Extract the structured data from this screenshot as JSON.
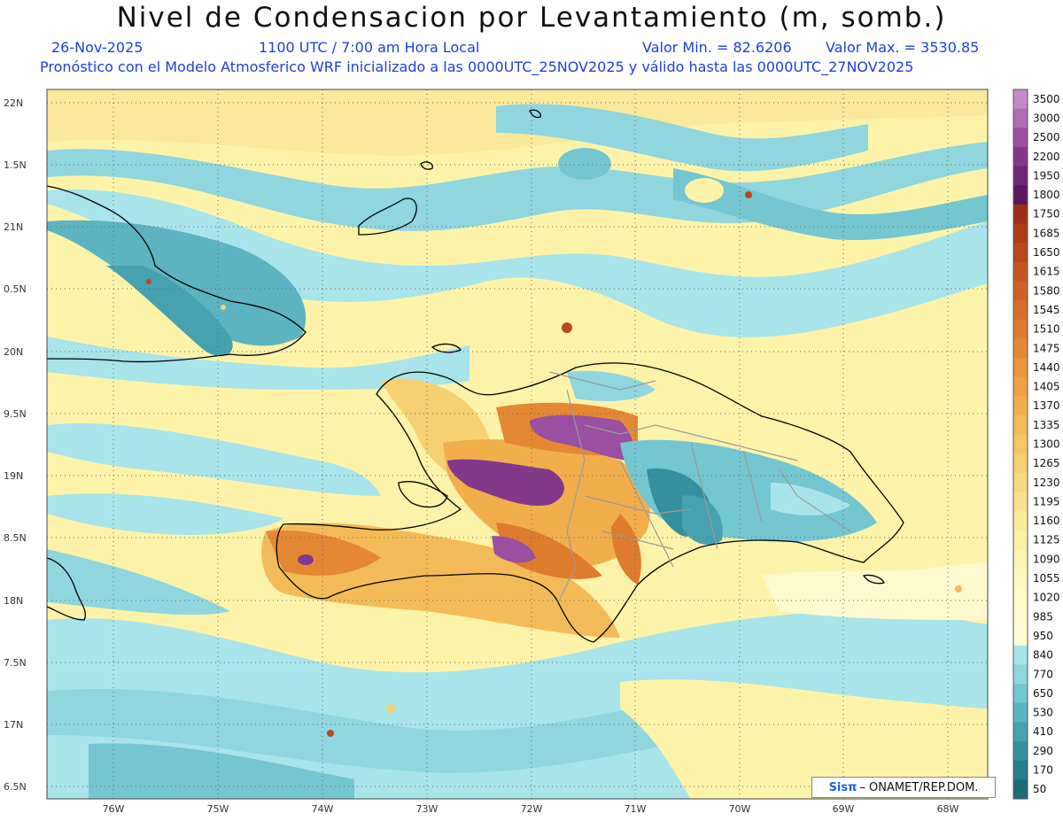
{
  "title": "Nivel de Condensacion por Levantamiento (m, somb.)",
  "header": {
    "date": "26-Nov-2025",
    "time": "1100 UTC / 7:00 am Hora Local",
    "min_label": "Valor Min. = 82.6206",
    "max_label": "Valor Max. = 3530.85",
    "forecast_note": "Pronóstico con el Modelo Atmosferico WRF inicializado a las 0000UTC_25NOV2025 y válido hasta las  0000UTC_27NOV2025"
  },
  "map": {
    "lat_labels": [
      "22N",
      "1.5N",
      "21N",
      "0.5N",
      "20N",
      "9.5N",
      "19N",
      "8.5N",
      "18N",
      "7.5N",
      "17N",
      "6.5N"
    ],
    "lon_labels": [
      "76W",
      "75W",
      "74W",
      "73W",
      "72W",
      "71W",
      "70W",
      "69W",
      "68W"
    ]
  },
  "legend": {
    "labels": [
      "3500",
      "3000",
      "2500",
      "2200",
      "1950",
      "1800",
      "1750",
      "1685",
      "1650",
      "1615",
      "1580",
      "1545",
      "1510",
      "1475",
      "1440",
      "1405",
      "1370",
      "1335",
      "1300",
      "1265",
      "1230",
      "1195",
      "1160",
      "1125",
      "1090",
      "1055",
      "1020",
      "985",
      "950",
      "840",
      "770",
      "650",
      "530",
      "410",
      "290",
      "170",
      "50"
    ],
    "colors": [
      "#c48ac8",
      "#b06cb4",
      "#9a4fa0",
      "#83388b",
      "#6e2675",
      "#581760",
      "#9c2d16",
      "#ad3a18",
      "#bb471c",
      "#c75420",
      "#d06124",
      "#d86e28",
      "#df7b2d",
      "#e58833",
      "#ea953a",
      "#ee a242",
      "#f1af4c",
      "#f3bb57",
      "#f5c664",
      "#f6d071",
      "#f8da7e",
      "#f9e28b",
      "#faea98",
      "#fbf0a6",
      "#fcf5b3",
      "#fdf8bf",
      "#fefbc9",
      "#fefcd0",
      "#fffdd6",
      "#a8e4ea",
      "#8fd6df",
      "#74c6d1",
      "#5cb4c1",
      "#47a2b0",
      "#368f9e",
      "#287d8c",
      "#1d6b7a"
    ]
  },
  "credit": {
    "logo": "Sisπ",
    "text": "– ONAMET/REP.DOM."
  }
}
